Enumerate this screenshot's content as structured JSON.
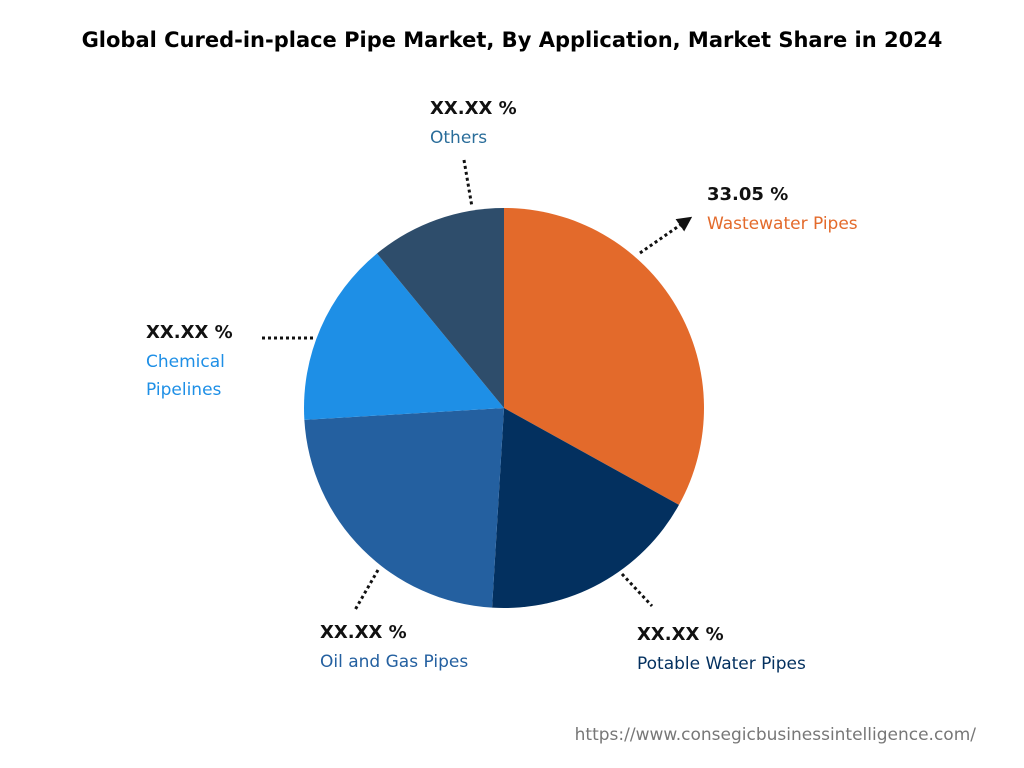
{
  "chart_data": {
    "type": "pie",
    "title": "Global Cured-in-place Pipe Market, By Application, Market Share in 2024",
    "categories": [
      "Wastewater Pipes",
      "Potable Water Pipes",
      "Oil and Gas Pipes",
      "Chemical Pipelines",
      "Others"
    ],
    "values": [
      33.05,
      17.9,
      23.1,
      15.0,
      10.95
    ],
    "value_labels": [
      "33.05 %",
      "XX.XX %",
      "XX.XX %",
      "XX.XX %",
      "XX.XX %"
    ],
    "colors": [
      "#e36a2b",
      "#03305f",
      "#2460a0",
      "#1e8fe6",
      "#2e4d6b"
    ],
    "label_colors": [
      "#e36a2b",
      "#03305f",
      "#2460a0",
      "#1e8fe6",
      "#2a6d9a"
    ],
    "source": "https://www.consegicbusinessintelligence.com/"
  }
}
